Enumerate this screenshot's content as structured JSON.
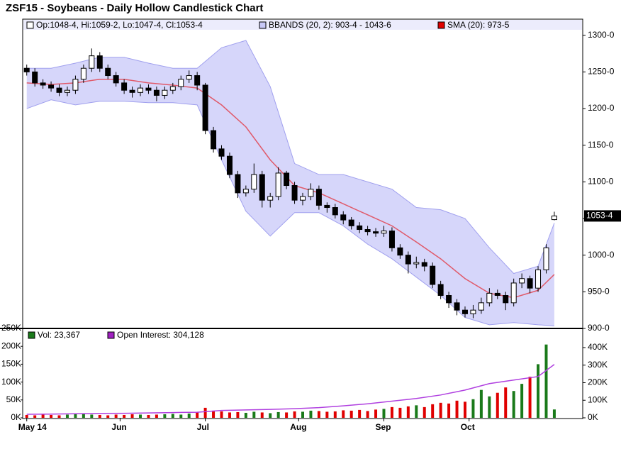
{
  "chart_data": [
    {
      "type": "candlestick",
      "title": "ZSF15 - Soybeans - Daily Hollow Candlestick Chart",
      "legend": [
        {
          "label": "Op:1048-4, Hi:1059-2, Lo:1047-4, Cl:1053-4",
          "color": "#ffffff"
        },
        {
          "label": "BBANDS (20, 2): 903-4 - 1043-6",
          "color": "#c8c8f8"
        },
        {
          "label": "SMA (20): 973-5",
          "color": "#e00000"
        }
      ],
      "x": [
        0,
        2,
        4,
        6,
        8,
        10,
        12,
        14,
        16,
        18,
        20,
        22,
        24,
        26,
        28,
        30,
        32,
        34,
        36,
        38,
        40,
        42,
        44,
        46,
        48,
        50,
        52,
        54,
        56,
        58,
        60,
        62,
        64,
        66,
        68,
        70,
        72,
        74,
        76,
        78,
        80,
        82,
        84,
        86,
        88,
        90,
        92,
        94,
        96,
        98,
        100,
        102,
        104,
        106,
        108,
        110,
        112,
        114,
        116,
        118,
        120,
        122,
        124,
        126,
        128,
        130
      ],
      "open": [
        1255,
        1250,
        1235,
        1232,
        1228,
        1222,
        1225,
        1240,
        1255,
        1272,
        1255,
        1245,
        1235,
        1225,
        1222,
        1228,
        1225,
        1218,
        1225,
        1230,
        1240,
        1245,
        1232,
        1170,
        1145,
        1135,
        1110,
        1085,
        1090,
        1110,
        1075,
        1080,
        1112,
        1095,
        1075,
        1080,
        1090,
        1068,
        1065,
        1055,
        1048,
        1040,
        1035,
        1032,
        1030,
        1033,
        1010,
        1000,
        988,
        990,
        985,
        960,
        945,
        935,
        925,
        920,
        925,
        935,
        948,
        945,
        935,
        962,
        968,
        955,
        980,
        1048.5
      ],
      "high": [
        1260,
        1255,
        1240,
        1237,
        1233,
        1230,
        1245,
        1260,
        1282,
        1277,
        1260,
        1250,
        1240,
        1230,
        1233,
        1233,
        1230,
        1230,
        1235,
        1245,
        1252,
        1250,
        1235,
        1175,
        1150,
        1140,
        1115,
        1095,
        1125,
        1115,
        1085,
        1120,
        1115,
        1100,
        1085,
        1098,
        1095,
        1072,
        1070,
        1060,
        1052,
        1045,
        1040,
        1037,
        1040,
        1038,
        1015,
        1005,
        998,
        995,
        990,
        965,
        950,
        940,
        930,
        932,
        942,
        955,
        953,
        950,
        968,
        975,
        972,
        985,
        1015,
        1059.25
      ],
      "low": [
        1245,
        1230,
        1227,
        1223,
        1217,
        1217,
        1220,
        1235,
        1250,
        1250,
        1240,
        1230,
        1220,
        1215,
        1217,
        1220,
        1210,
        1213,
        1220,
        1225,
        1235,
        1225,
        1165,
        1140,
        1130,
        1105,
        1078,
        1080,
        1085,
        1065,
        1065,
        1075,
        1090,
        1070,
        1068,
        1075,
        1062,
        1058,
        1050,
        1042,
        1035,
        1030,
        1027,
        1025,
        1025,
        1005,
        995,
        975,
        982,
        978,
        955,
        940,
        928,
        918,
        915,
        914,
        920,
        930,
        940,
        925,
        930,
        955,
        948,
        950,
        975,
        1047.5
      ],
      "close": [
        1250,
        1235,
        1232,
        1228,
        1222,
        1225,
        1240,
        1255,
        1272,
        1255,
        1245,
        1235,
        1225,
        1222,
        1228,
        1225,
        1218,
        1225,
        1230,
        1240,
        1245,
        1232,
        1170,
        1145,
        1135,
        1110,
        1085,
        1090,
        1110,
        1075,
        1080,
        1112,
        1095,
        1075,
        1080,
        1090,
        1068,
        1065,
        1055,
        1048,
        1040,
        1035,
        1032,
        1030,
        1033,
        1010,
        1000,
        988,
        990,
        985,
        960,
        945,
        935,
        925,
        920,
        925,
        935,
        948,
        945,
        935,
        962,
        968,
        955,
        980,
        1010,
        1053.5
      ],
      "hollow_color": "#ffffff",
      "filled_color": "#000000",
      "indicator_x": [
        0,
        6,
        12,
        18,
        24,
        30,
        36,
        42,
        48,
        54,
        60,
        66,
        72,
        78,
        84,
        90,
        96,
        102,
        108,
        114,
        120,
        126,
        130
      ],
      "bbands_upper": [
        1255,
        1255,
        1262,
        1270,
        1270,
        1262,
        1255,
        1255,
        1283,
        1293,
        1230,
        1125,
        1110,
        1110,
        1100,
        1090,
        1065,
        1062,
        1050,
        1010,
        975,
        985,
        1043.75
      ],
      "bbands_lower": [
        1200,
        1212,
        1205,
        1210,
        1210,
        1208,
        1208,
        1205,
        1130,
        1060,
        1026,
        1058,
        1058,
        1040,
        1015,
        995,
        970,
        945,
        915,
        905,
        908,
        905,
        903.5
      ],
      "band_color": "#c8c8f8",
      "sma": [
        1235,
        1233,
        1235,
        1240,
        1240,
        1235,
        1232,
        1228,
        1205,
        1175,
        1130,
        1095,
        1085,
        1070,
        1055,
        1040,
        1018,
        995,
        968,
        948,
        942,
        952,
        973.625
      ],
      "sma_color": "#e05a6a",
      "xlim": [
        -1,
        137
      ],
      "ylim": [
        900,
        1322
      ],
      "yticks": [
        {
          "value": 900,
          "label": "900-0"
        },
        {
          "value": 950,
          "label": "950-0"
        },
        {
          "value": 1000,
          "label": "1000-0"
        },
        {
          "value": 1050,
          "label": "1050-0"
        },
        {
          "value": 1100,
          "label": "1100-0"
        },
        {
          "value": 1150,
          "label": "1150-0"
        },
        {
          "value": 1200,
          "label": "1200-0"
        },
        {
          "value": 1250,
          "label": "1250-0"
        },
        {
          "value": 1300,
          "label": "1300-0"
        }
      ],
      "last_price": {
        "value": 1053.5,
        "label": "1053-4"
      }
    },
    {
      "type": "bar",
      "legend": [
        {
          "label": "Vol: 23,367",
          "color": "#1a7a1a"
        },
        {
          "label": "Open Interest: 304,128",
          "color": "#a020c0"
        }
      ],
      "volume": [
        8000,
        7000,
        9000,
        8000,
        7000,
        9000,
        10000,
        12000,
        9000,
        8000,
        7000,
        9000,
        8000,
        10000,
        9000,
        8000,
        9000,
        10000,
        11000,
        9000,
        12000,
        15000,
        28000,
        20000,
        18000,
        15000,
        16000,
        14000,
        17000,
        15000,
        13000,
        16000,
        15000,
        18000,
        17000,
        20000,
        19000,
        17000,
        18000,
        21000,
        20000,
        22000,
        19000,
        23000,
        25000,
        30000,
        28000,
        32000,
        35000,
        30000,
        38000,
        42000,
        40000,
        48000,
        45000,
        52000,
        78000,
        60000,
        70000,
        85000,
        75000,
        95000,
        115000,
        150000,
        205000,
        23367
      ],
      "up_color": "#1a7a1a",
      "down_color": "#e00000",
      "open_interest": [
        20000,
        21000,
        23000,
        25000,
        26000,
        28000,
        30000,
        32000,
        42000,
        45000,
        48000,
        52000,
        58000,
        68000,
        80000,
        95000,
        110000,
        130000,
        158000,
        195000,
        215000,
        235000,
        304128
      ],
      "oi_color": "#b040e0",
      "xticks": [
        {
          "value": 0,
          "label": "May 14"
        },
        {
          "value": 23,
          "label": "Jun"
        },
        {
          "value": 44,
          "label": "Jul"
        },
        {
          "value": 67,
          "label": "Aug"
        },
        {
          "value": 88,
          "label": "Sep"
        },
        {
          "value": 109,
          "label": "Oct"
        }
      ],
      "ylim": [
        0,
        250000
      ],
      "yticks": [
        {
          "value": 0,
          "label": "0K"
        },
        {
          "value": 50000,
          "label": "50K"
        },
        {
          "value": 100000,
          "label": "100K"
        },
        {
          "value": 150000,
          "label": "150K"
        },
        {
          "value": 200000,
          "label": "200K"
        },
        {
          "value": 250000,
          "label": "250K"
        }
      ],
      "y2lim": [
        0,
        509000
      ],
      "y2ticks": [
        {
          "value": 0,
          "label": "0K"
        },
        {
          "value": 100000,
          "label": "100K"
        },
        {
          "value": 200000,
          "label": "200K"
        },
        {
          "value": 300000,
          "label": "300K"
        },
        {
          "value": 400000,
          "label": "400K"
        }
      ]
    }
  ]
}
